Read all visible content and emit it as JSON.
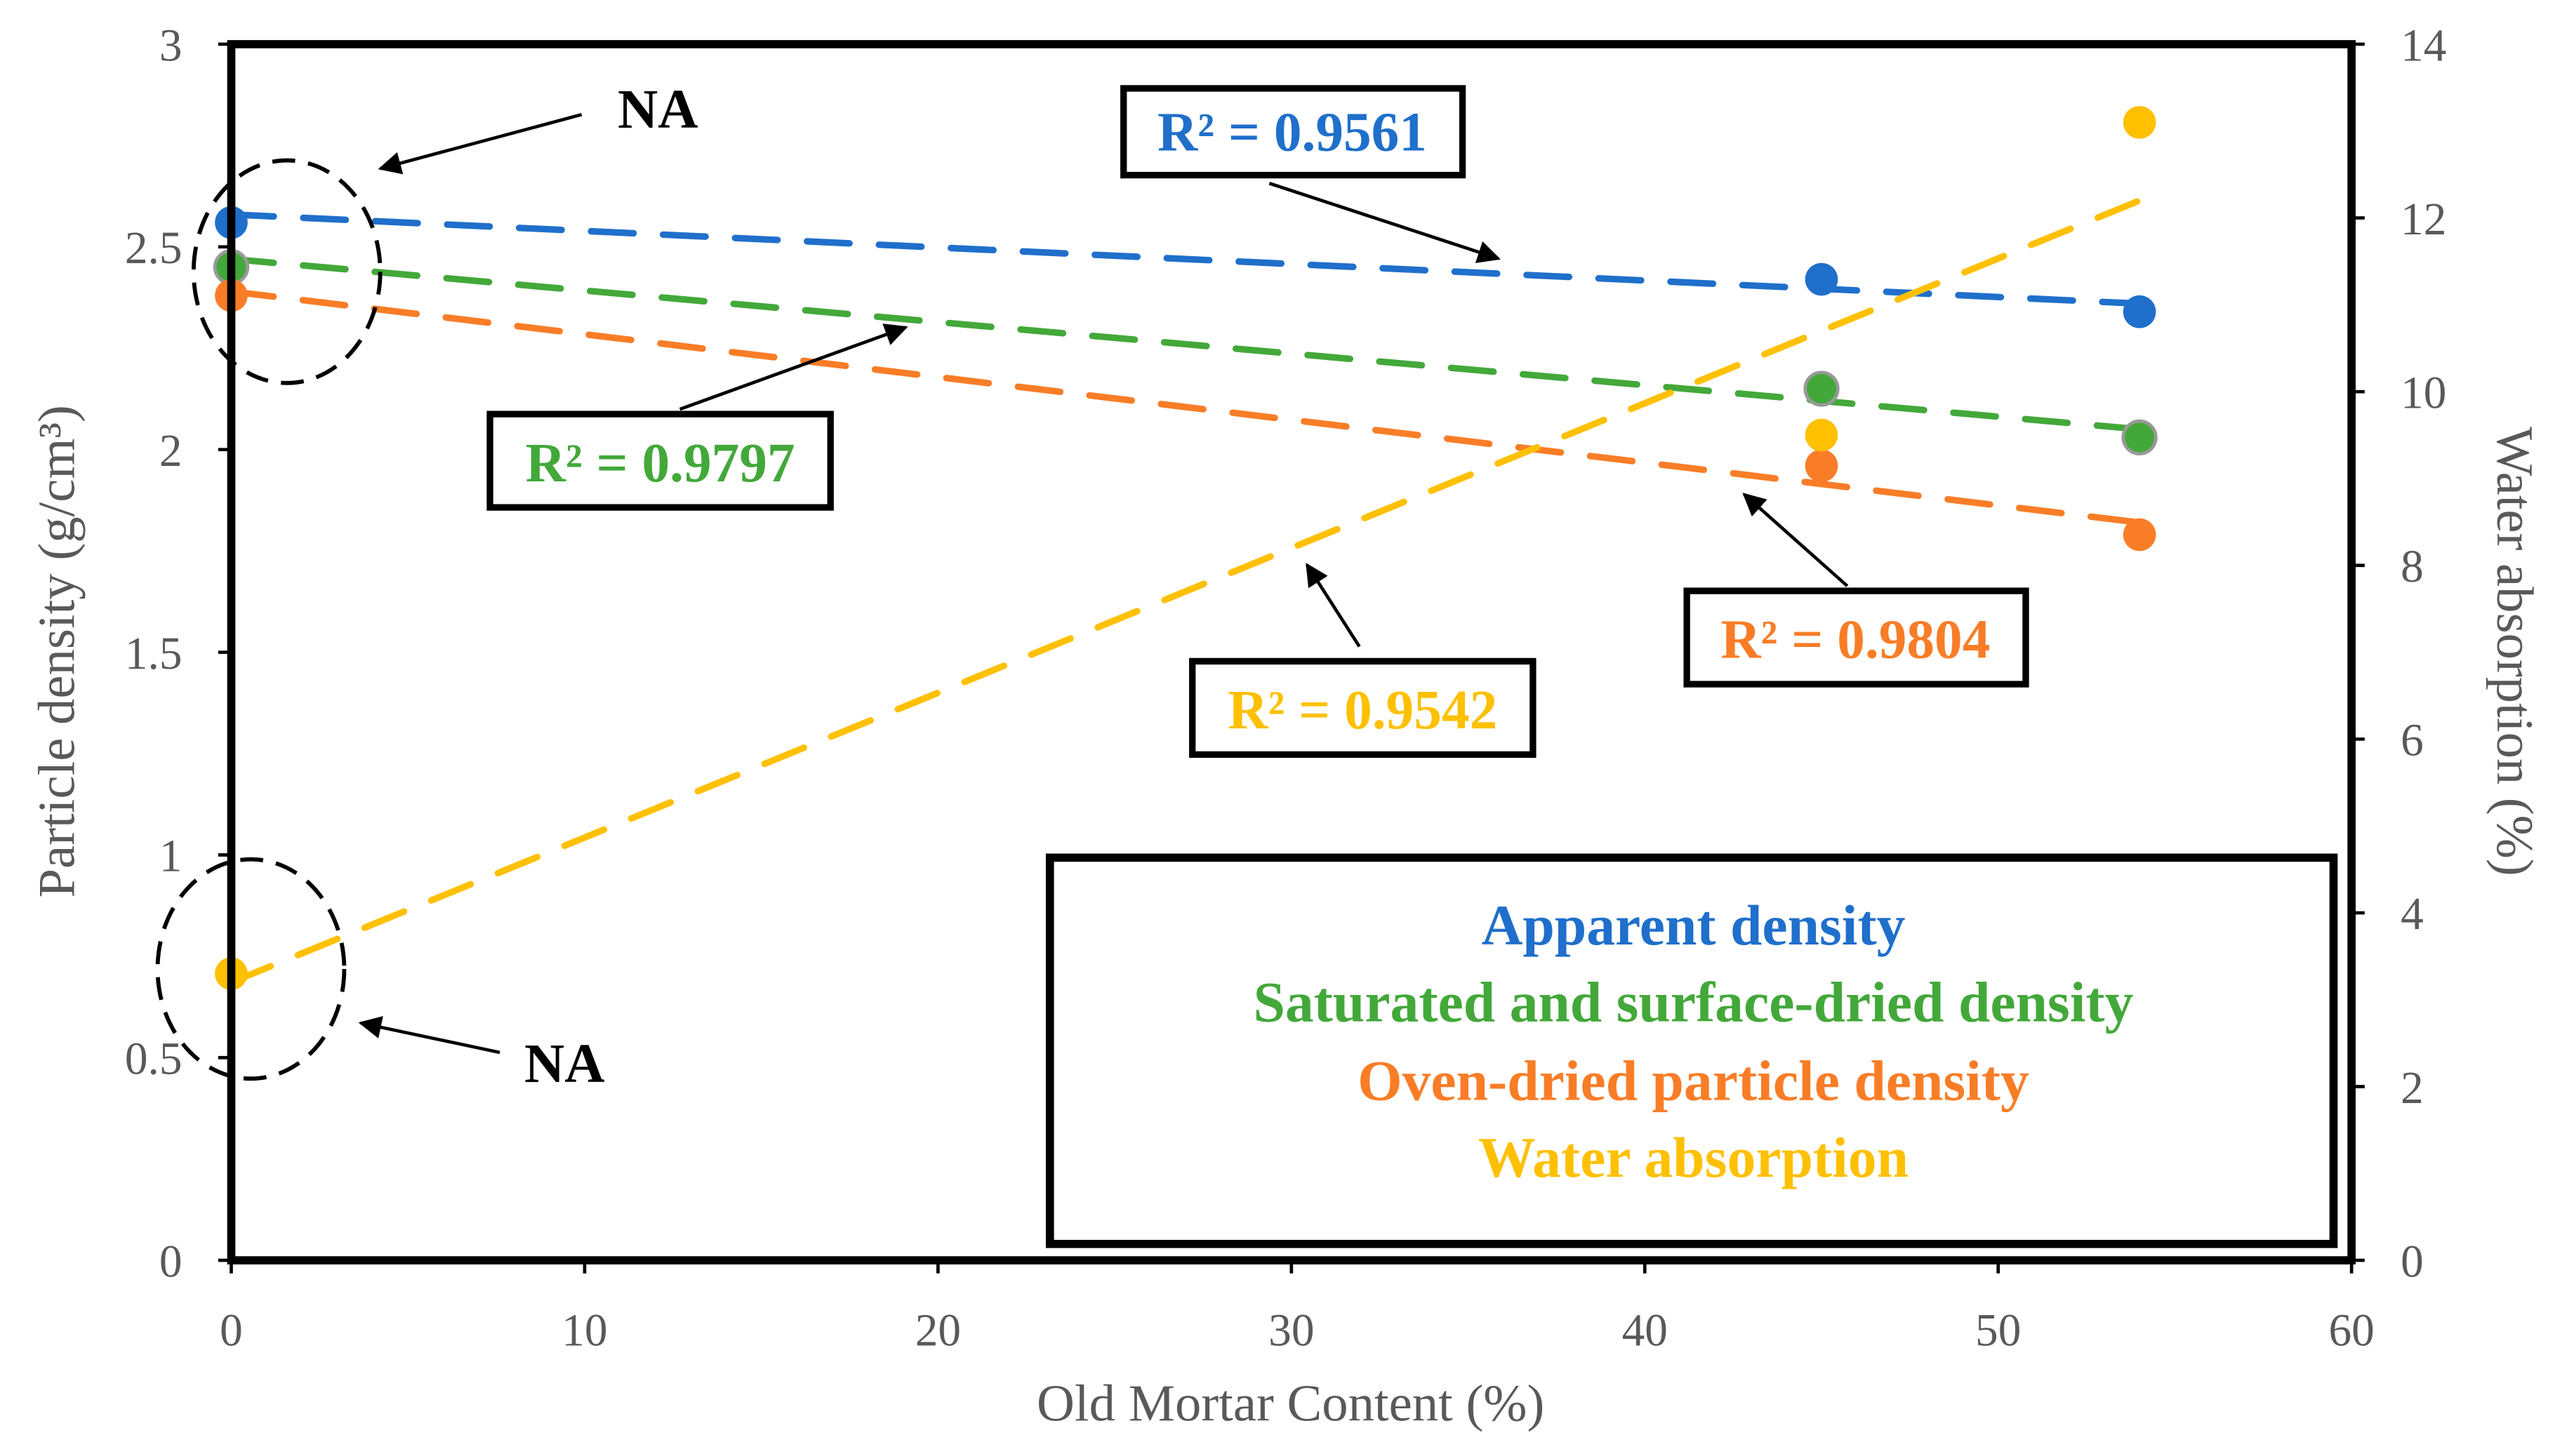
{
  "chart_data": {
    "type": "scatter",
    "title": "",
    "xlabel": "Old Mortar Content (%)",
    "ylabel": "Particle density (g/cm³)",
    "y2label": "Water absorption (%)",
    "xlim": [
      0,
      60
    ],
    "ylim": [
      0,
      3
    ],
    "y2lim": [
      0,
      14
    ],
    "xticks": [
      "0",
      "10",
      "20",
      "30",
      "40",
      "50",
      "60"
    ],
    "yticks": [
      "0",
      "0.5",
      "1",
      "1.5",
      "2",
      "2.5",
      "3"
    ],
    "y2ticks": [
      "0",
      "2",
      "4",
      "6",
      "8",
      "10",
      "12",
      "14"
    ],
    "grid": false,
    "legend_position": "bottom-right",
    "series": [
      {
        "name": "Apparent density",
        "axis": "left",
        "color": "#1f6fcb",
        "x": [
          0,
          45,
          54
        ],
        "y": [
          2.56,
          2.42,
          2.34
        ],
        "trend": [
          [
            0,
            2.58
          ],
          [
            54,
            2.36
          ]
        ],
        "r2_label": "R² = 0.9561"
      },
      {
        "name": "Saturated and surface-dried density",
        "axis": "left",
        "color": "#43a83a",
        "x": [
          0,
          45,
          54
        ],
        "y": [
          2.45,
          2.15,
          2.03
        ],
        "trend": [
          [
            0,
            2.47
          ],
          [
            54,
            2.05
          ]
        ],
        "r2_label": "R² = 0.9797"
      },
      {
        "name": "Oven-dried particle density",
        "axis": "left",
        "color": "#f97d27",
        "x": [
          0,
          45,
          54
        ],
        "y": [
          2.38,
          1.96,
          1.79
        ],
        "trend": [
          [
            0,
            2.39
          ],
          [
            54,
            1.82
          ]
        ],
        "r2_label": "R² = 0.9804"
      },
      {
        "name": "Water absorption",
        "axis": "right",
        "color": "#ffc000",
        "x": [
          0,
          45,
          54
        ],
        "y": [
          3.3,
          9.5,
          13.1
        ],
        "trend": [
          [
            0,
            3.2
          ],
          [
            54,
            12.2
          ]
        ],
        "r2_label": "R² = 0.9542"
      }
    ],
    "annotations": [
      "NA",
      "NA"
    ]
  }
}
